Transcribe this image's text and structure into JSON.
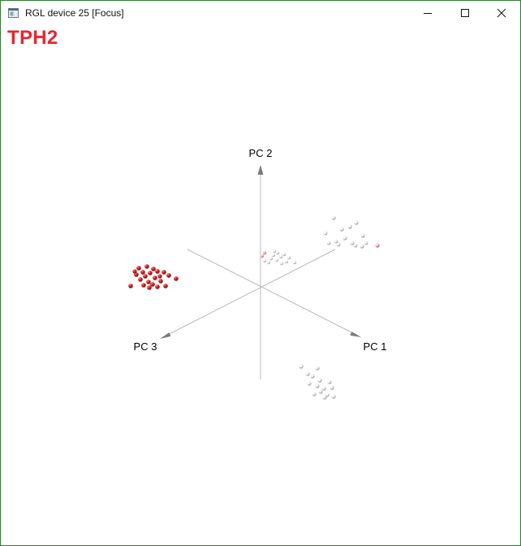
{
  "window": {
    "title": "RGL device 25 [Focus]",
    "icon": "rgl-window-icon",
    "controls": [
      "minimize-icon",
      "maximize-icon",
      "close-icon"
    ]
  },
  "plot": {
    "title": "TPH2",
    "title_color": "#e8262f",
    "axes": [
      {
        "name": "PC 1",
        "label": "PC 1"
      },
      {
        "name": "PC 2",
        "label": "PC 2"
      },
      {
        "name": "PC 3",
        "label": "PC 3"
      }
    ],
    "axis_color": "#b8b8b8",
    "arrow_color": "#7a7a7a",
    "colors": {
      "high": "#c81e1e",
      "low": "#ffffff"
    }
  }
}
